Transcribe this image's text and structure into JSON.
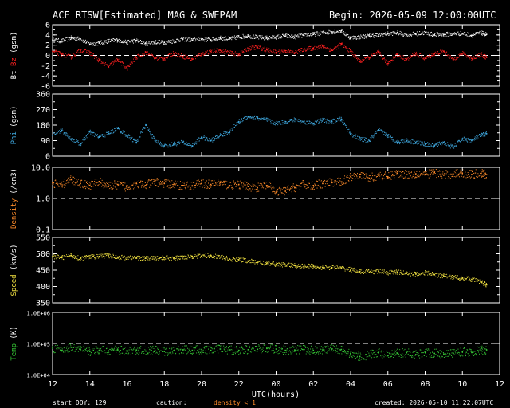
{
  "title": "ACE RTSW[Estimated] MAG & SWEPAM",
  "begin": "Begin: 2026-05-09 12:00:00UTC",
  "xlabel": "UTC(hours)",
  "footer": {
    "start_doy": "start DOY: 129",
    "caution": "caution:",
    "density_note": "density < 1",
    "created": "created: 2026-05-10 11:22:07UTC"
  },
  "colors": {
    "background": "#000000",
    "axes": "#ffffff",
    "bt": "#ffffff",
    "bz": "#ff2020",
    "phi": "#3fa9e0",
    "density": "#ff8c2a",
    "speed": "#f0e040",
    "temp": "#36c836",
    "caution": "#ff8c2a"
  },
  "chart_data": [
    {
      "type": "scatter",
      "ylabel_parts": [
        {
          "text": "Bt",
          "color": "#ffffff"
        },
        {
          "text": " Bz",
          "color": "#ff2020"
        },
        {
          "text": " (gsm)",
          "color": "#ffffff"
        }
      ],
      "xlim": [
        12,
        36
      ],
      "ylim": [
        -6,
        6
      ],
      "yticks": [
        "6",
        "4",
        "2",
        "0",
        "-2",
        "-4",
        "-6"
      ],
      "ytick_values": [
        6,
        4,
        2,
        0,
        -2,
        -4,
        -6
      ],
      "dashed_y": [
        0
      ],
      "series": [
        {
          "key": "bt",
          "color": "#ffffff",
          "x": [
            12,
            12.5,
            13,
            13.5,
            14,
            14.5,
            15,
            15.5,
            16,
            16.5,
            17,
            17.5,
            18,
            18.5,
            19,
            19.5,
            20,
            20.5,
            21,
            21.5,
            22,
            22.5,
            23,
            23.5,
            24,
            24.5,
            25,
            25.5,
            26,
            26.5,
            27,
            27.5,
            28,
            28.5,
            29,
            29.5,
            30,
            30.5,
            31,
            31.5,
            32,
            32.5,
            33,
            33.5,
            34,
            34.5,
            35,
            35.3
          ],
          "y": [
            3.0,
            2.8,
            3.4,
            3.2,
            2.2,
            2.4,
            2.8,
            3.0,
            2.6,
            2.9,
            2.3,
            2.6,
            2.5,
            2.8,
            3.2,
            3.0,
            3.2,
            3.0,
            3.4,
            3.2,
            3.6,
            3.8,
            3.5,
            3.4,
            3.6,
            3.8,
            3.6,
            3.9,
            4.1,
            4.4,
            4.6,
            4.8,
            3.4,
            3.6,
            3.8,
            4.0,
            4.2,
            4.4,
            4.0,
            4.2,
            4.4,
            4.0,
            4.1,
            4.2,
            4.3,
            3.9,
            4.4,
            4.1
          ]
        },
        {
          "key": "bz",
          "color": "#ff2020",
          "x": [
            12,
            12.5,
            13,
            13.5,
            14,
            14.5,
            15,
            15.5,
            16,
            16.5,
            17,
            17.5,
            18,
            18.5,
            19,
            19.5,
            20,
            20.5,
            21,
            21.5,
            22,
            22.5,
            23,
            23.5,
            24,
            24.5,
            25,
            25.5,
            26,
            26.5,
            27,
            27.5,
            28,
            28.5,
            29,
            29.5,
            30,
            30.5,
            31,
            31.5,
            32,
            32.5,
            33,
            33.5,
            34,
            34.5,
            35,
            35.3
          ],
          "y": [
            0.8,
            0.2,
            -0.3,
            1.0,
            0.5,
            -1.0,
            -2.2,
            -0.8,
            -2.6,
            -0.4,
            0.6,
            -0.5,
            -0.6,
            0.4,
            -0.2,
            -0.7,
            0.3,
            0.8,
            1.0,
            0.5,
            0.2,
            1.3,
            1.6,
            1.1,
            0.6,
            0.9,
            0.5,
            1.2,
            1.4,
            1.8,
            1.0,
            2.2,
            0.8,
            -1.2,
            -0.4,
            0.6,
            -1.6,
            0.2,
            -0.8,
            0.4,
            -0.6,
            0.3,
            0.8,
            -0.8,
            0.4,
            -0.6,
            0.2,
            -0.4
          ]
        }
      ]
    },
    {
      "type": "scatter",
      "ylabel_parts": [
        {
          "text": "Phi",
          "color": "#3fa9e0"
        },
        {
          "text": " (gsm)",
          "color": "#ffffff"
        }
      ],
      "xlim": [
        12,
        36
      ],
      "ylim": [
        0,
        360
      ],
      "yticks": [
        "360",
        "270",
        "180",
        "90",
        "0"
      ],
      "ytick_values": [
        360,
        270,
        180,
        90,
        0
      ],
      "dashed_y": [],
      "series": [
        {
          "key": "phi",
          "color": "#3fa9e0",
          "x": [
            12,
            12.5,
            13,
            13.5,
            14,
            14.5,
            15,
            15.5,
            16,
            16.5,
            17,
            17.5,
            18,
            18.5,
            19,
            19.5,
            20,
            20.5,
            21,
            21.5,
            22,
            22.5,
            23,
            23.5,
            24,
            24.5,
            25,
            25.5,
            26,
            26.5,
            27,
            27.5,
            28,
            28.5,
            29,
            29.5,
            30,
            30.5,
            31,
            31.5,
            32,
            32.5,
            33,
            33.5,
            34,
            34.5,
            35,
            35.3
          ],
          "y": [
            120,
            150,
            100,
            70,
            140,
            110,
            130,
            160,
            120,
            80,
            180,
            90,
            60,
            70,
            80,
            60,
            110,
            90,
            120,
            140,
            200,
            230,
            220,
            210,
            190,
            200,
            210,
            200,
            190,
            210,
            200,
            215,
            130,
            100,
            90,
            150,
            120,
            80,
            90,
            80,
            70,
            60,
            80,
            50,
            100,
            90,
            120,
            130
          ]
        }
      ]
    },
    {
      "type": "scatter",
      "ylabel_parts": [
        {
          "text": "Density",
          "color": "#ff8c2a"
        },
        {
          "text": " (/cm3)",
          "color": "#ffffff"
        }
      ],
      "xlim": [
        12,
        36
      ],
      "yscale": "log",
      "ylim": [
        0.1,
        10
      ],
      "yticks": [
        "10.0",
        "1.0",
        "0.1"
      ],
      "ytick_values": [
        10,
        1,
        0.1
      ],
      "dashed_y": [
        1
      ],
      "series": [
        {
          "key": "density",
          "color": "#ff8c2a",
          "x": [
            12,
            12.5,
            13,
            13.5,
            14,
            14.5,
            15,
            15.5,
            16,
            16.5,
            17,
            17.5,
            18,
            18.5,
            19,
            19.5,
            20,
            20.5,
            21,
            21.5,
            22,
            22.5,
            23,
            23.5,
            24,
            24.5,
            25,
            25.5,
            26,
            26.5,
            27,
            27.5,
            28,
            28.5,
            29,
            29.5,
            30,
            30.5,
            31,
            31.5,
            32,
            32.5,
            33,
            33.5,
            34,
            34.5,
            35,
            35.3
          ],
          "y": [
            3.2,
            2.5,
            4.0,
            3.0,
            2.6,
            3.5,
            2.4,
            2.8,
            2.2,
            3.0,
            2.6,
            3.4,
            3.0,
            2.8,
            2.6,
            2.5,
            3.0,
            2.8,
            3.2,
            2.6,
            2.8,
            2.4,
            2.2,
            2.6,
            1.6,
            1.7,
            2.2,
            2.8,
            2.6,
            3.0,
            3.2,
            3.4,
            5.0,
            6.0,
            4.5,
            5.5,
            5.0,
            6.5,
            5.8,
            6.2,
            6.0,
            6.8,
            5.6,
            6.2,
            6.5,
            5.9,
            6.4,
            5.8
          ]
        }
      ]
    },
    {
      "type": "scatter",
      "ylabel_parts": [
        {
          "text": "Speed",
          "color": "#f0e040"
        },
        {
          "text": " (km/s)",
          "color": "#ffffff"
        }
      ],
      "xlim": [
        12,
        36
      ],
      "ylim": [
        350,
        550
      ],
      "yticks": [
        "550",
        "500",
        "450",
        "400",
        "350"
      ],
      "ytick_values": [
        550,
        500,
        450,
        400,
        350
      ],
      "dashed_y": [],
      "series": [
        {
          "key": "speed",
          "color": "#f0e040",
          "x": [
            12,
            12.5,
            13,
            13.5,
            14,
            14.5,
            15,
            15.5,
            16,
            16.5,
            17,
            17.5,
            18,
            18.5,
            19,
            19.5,
            20,
            20.5,
            21,
            21.5,
            22,
            22.5,
            23,
            23.5,
            24,
            24.5,
            25,
            25.5,
            26,
            26.5,
            27,
            27.5,
            28,
            28.5,
            29,
            29.5,
            30,
            30.5,
            31,
            31.5,
            32,
            32.5,
            33,
            33.5,
            34,
            34.5,
            35,
            35.3
          ],
          "y": [
            492,
            488,
            495,
            486,
            490,
            492,
            494,
            490,
            488,
            488,
            486,
            486,
            488,
            486,
            490,
            492,
            493,
            494,
            490,
            484,
            482,
            478,
            474,
            470,
            468,
            466,
            464,
            462,
            462,
            458,
            458,
            456,
            452,
            446,
            444,
            446,
            442,
            444,
            440,
            438,
            442,
            436,
            432,
            428,
            426,
            422,
            414,
            405
          ]
        }
      ]
    },
    {
      "type": "scatter",
      "ylabel_parts": [
        {
          "text": "Temp",
          "color": "#36c836"
        },
        {
          "text": " (K)",
          "color": "#ffffff"
        }
      ],
      "xlim": [
        12,
        36
      ],
      "yscale": "log",
      "ylim": [
        10000,
        1000000
      ],
      "yticks": [
        "1.0E+06",
        "1.0E+05",
        "1.0E+04"
      ],
      "ytick_values": [
        1000000,
        100000,
        10000
      ],
      "dashed_y": [
        100000
      ],
      "series": [
        {
          "key": "temp",
          "color": "#36c836",
          "x": [
            12,
            12.5,
            13,
            13.5,
            14,
            14.5,
            15,
            15.5,
            16,
            16.5,
            17,
            17.5,
            18,
            18.5,
            19,
            19.5,
            20,
            20.5,
            21,
            21.5,
            22,
            22.5,
            23,
            23.5,
            24,
            24.5,
            25,
            25.5,
            26,
            26.5,
            27,
            27.5,
            28,
            28.5,
            29,
            29.5,
            30,
            30.5,
            31,
            31.5,
            32,
            32.5,
            33,
            33.5,
            34,
            34.5,
            35,
            35.3
          ],
          "y": [
            70000,
            60000,
            75000,
            65000,
            55000,
            60000,
            58000,
            62000,
            56000,
            60000,
            57000,
            60000,
            55000,
            58000,
            62000,
            60000,
            64000,
            60000,
            66000,
            62000,
            60000,
            63000,
            65000,
            70000,
            66000,
            60000,
            62000,
            64000,
            60000,
            62000,
            66000,
            64000,
            45000,
            38000,
            42000,
            52000,
            40000,
            48000,
            50000,
            44000,
            52000,
            48000,
            46000,
            50000,
            54000,
            52000,
            60000,
            62000
          ]
        }
      ]
    }
  ],
  "xaxis": {
    "ticks": [
      "12",
      "14",
      "16",
      "18",
      "20",
      "22",
      "00",
      "02",
      "04",
      "06",
      "08",
      "10",
      "12"
    ],
    "tick_values": [
      12,
      14,
      16,
      18,
      20,
      22,
      24,
      26,
      28,
      30,
      32,
      34,
      36
    ],
    "xlim": [
      12,
      36
    ]
  }
}
